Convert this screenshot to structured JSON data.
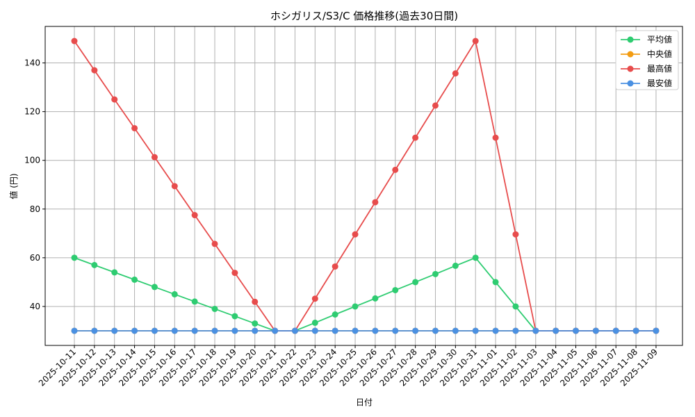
{
  "chart_data": {
    "type": "line",
    "title": "ホシガリス/S3/C 価格推移(過去30日間)",
    "xlabel": "日付",
    "ylabel": "値 (円)",
    "ylim": [
      24,
      155
    ],
    "yticks": [
      40,
      60,
      80,
      100,
      120,
      140
    ],
    "grid": true,
    "legend_position": "top-right",
    "x": [
      "2025-10-11",
      "2025-10-12",
      "2025-10-13",
      "2025-10-14",
      "2025-10-15",
      "2025-10-16",
      "2025-10-17",
      "2025-10-18",
      "2025-10-19",
      "2025-10-20",
      "2025-10-21",
      "2025-10-22",
      "2025-10-23",
      "2025-10-24",
      "2025-10-25",
      "2025-10-26",
      "2025-10-27",
      "2025-10-28",
      "2025-10-29",
      "2025-10-30",
      "2025-10-31",
      "2025-11-01",
      "2025-11-02",
      "2025-11-03",
      "2025-11-04",
      "2025-11-05",
      "2025-11-06",
      "2025-11-07",
      "2025-11-08",
      "2025-11-09"
    ],
    "series": [
      {
        "name": "平均値",
        "color": "#2ecc71",
        "values": [
          60,
          57,
          54,
          51,
          48,
          45,
          42,
          39,
          36,
          33,
          30,
          30,
          33.3,
          36.7,
          40,
          43.3,
          46.7,
          50,
          53.3,
          56.7,
          60,
          50,
          40,
          30,
          30,
          30,
          30,
          30,
          30,
          30
        ]
      },
      {
        "name": "中央値",
        "color": "#f39c12",
        "values": [
          30,
          30,
          30,
          30,
          30,
          30,
          30,
          30,
          30,
          30,
          30,
          30,
          30,
          30,
          30,
          30,
          30,
          30,
          30,
          30,
          30,
          30,
          30,
          30,
          30,
          30,
          30,
          30,
          30,
          30
        ]
      },
      {
        "name": "最高値",
        "color": "#e74c4c",
        "values": [
          149,
          137,
          125,
          113.2,
          101.3,
          89.4,
          77.5,
          65.7,
          53.8,
          41.9,
          30,
          30,
          43.2,
          56.4,
          69.6,
          82.8,
          96.1,
          109.3,
          122.5,
          135.7,
          149,
          109.3,
          69.6,
          30,
          30,
          30,
          30,
          30,
          30,
          30
        ]
      },
      {
        "name": "最安値",
        "color": "#4a90e2",
        "values": [
          30,
          30,
          30,
          30,
          30,
          30,
          30,
          30,
          30,
          30,
          30,
          30,
          30,
          30,
          30,
          30,
          30,
          30,
          30,
          30,
          30,
          30,
          30,
          30,
          30,
          30,
          30,
          30,
          30,
          30
        ]
      }
    ]
  }
}
